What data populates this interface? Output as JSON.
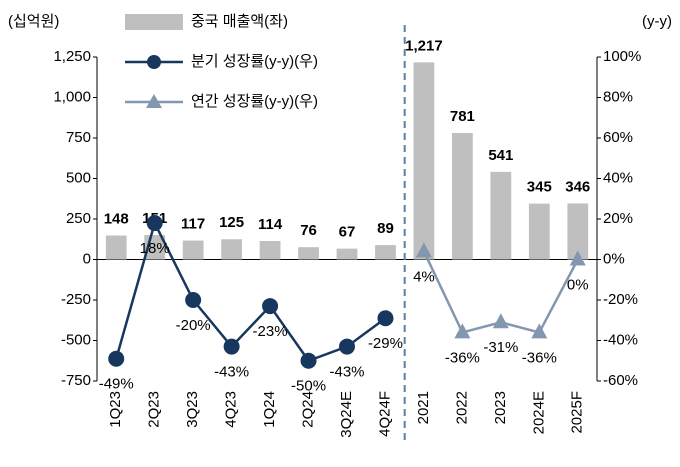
{
  "chart_data": {
    "type": "bar",
    "y_label": "(십억원)",
    "y2_label": "(y-y)",
    "categories": [
      "1Q23",
      "2Q23",
      "3Q23",
      "4Q23",
      "1Q24",
      "2Q24",
      "3Q24E",
      "4Q24F",
      "2021",
      "2022",
      "2023",
      "2024E",
      "2025F"
    ],
    "series": [
      {
        "name": "중국 매출액(좌)",
        "type": "bar",
        "color": "#bfbfbf",
        "values": [
          148,
          151,
          117,
          125,
          114,
          76,
          67,
          89,
          1217,
          781,
          541,
          345,
          346
        ],
        "value_labels": [
          "148",
          "151",
          "117",
          "125",
          "114",
          "76",
          "67",
          "89",
          "1,217",
          "781",
          "541",
          "345",
          "346"
        ]
      },
      {
        "name": "분기 성장률(y-y)(우)",
        "type": "line",
        "marker": "circle",
        "axis": "y2",
        "color": "#17375e",
        "values": [
          -49,
          18,
          -20,
          -43,
          -23,
          -50,
          -43,
          -29,
          null,
          null,
          null,
          null,
          null
        ],
        "value_labels": [
          "-49%",
          "18%",
          "-20%",
          "-43%",
          "-23%",
          "-50%",
          "-43%",
          "-29%",
          null,
          null,
          null,
          null,
          null
        ]
      },
      {
        "name": "연간 성장률(y-y)(우)",
        "type": "line",
        "marker": "triangle",
        "axis": "y2",
        "color": "#8497b0",
        "values": [
          null,
          null,
          null,
          null,
          null,
          null,
          null,
          null,
          4,
          -36,
          -31,
          -36,
          0
        ],
        "value_labels": [
          null,
          null,
          null,
          null,
          null,
          null,
          null,
          null,
          "4%",
          "-36%",
          "-31%",
          "-36%",
          "0%"
        ]
      }
    ],
    "ylim": [
      -750,
      1250
    ],
    "yticks": [
      -750,
      -500,
      -250,
      0,
      250,
      500,
      750,
      {
        "value": 1000,
        "label": "1,000"
      },
      {
        "value": 1250,
        "label": "1,250"
      }
    ],
    "y2lim": [
      -60,
      100
    ],
    "y2ticks": [
      {
        "value": -60,
        "label": "-60%"
      },
      {
        "value": -40,
        "label": "-40%"
      },
      {
        "value": -20,
        "label": "-20%"
      },
      {
        "value": 0,
        "label": "0%"
      },
      {
        "value": 20,
        "label": "20%"
      },
      {
        "value": 40,
        "label": "40%"
      },
      {
        "value": 60,
        "label": "60%"
      },
      {
        "value": 80,
        "label": "80%"
      },
      {
        "value": 100,
        "label": "100%"
      }
    ]
  }
}
